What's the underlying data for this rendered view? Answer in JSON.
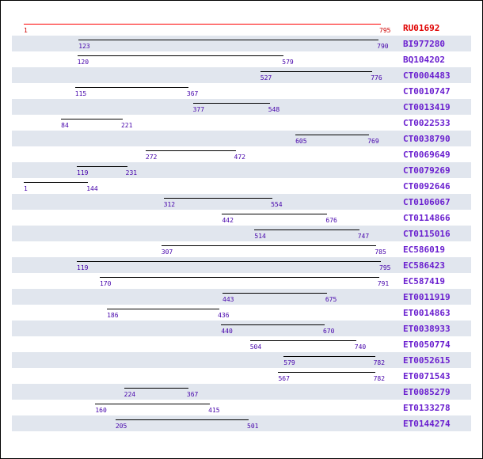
{
  "colors": {
    "reference": "#e00000",
    "line": "#000000",
    "accession": "#6a1fcf",
    "coordinate": "#4400aa",
    "stripe": "#e1e6ee"
  },
  "alignments": [
    {
      "name": "RU01692",
      "start": 1,
      "end": 795,
      "reference": true
    },
    {
      "name": "BI977280",
      "start": 123,
      "end": 790
    },
    {
      "name": "BQ104202",
      "start": 120,
      "end": 579
    },
    {
      "name": "CT0004483",
      "start": 527,
      "end": 776
    },
    {
      "name": "CT0010747",
      "start": 115,
      "end": 367
    },
    {
      "name": "CT0013419",
      "start": 377,
      "end": 548
    },
    {
      "name": "CT0022533",
      "start": 84,
      "end": 221
    },
    {
      "name": "CT0038790",
      "start": 605,
      "end": 769
    },
    {
      "name": "CT0069649",
      "start": 272,
      "end": 472
    },
    {
      "name": "CT0079269",
      "start": 119,
      "end": 231
    },
    {
      "name": "CT0092646",
      "start": 1,
      "end": 144
    },
    {
      "name": "CT0106067",
      "start": 312,
      "end": 554
    },
    {
      "name": "CT0114866",
      "start": 442,
      "end": 676
    },
    {
      "name": "CT0115016",
      "start": 514,
      "end": 747
    },
    {
      "name": "EC586019",
      "start": 307,
      "end": 785
    },
    {
      "name": "EC586423",
      "start": 119,
      "end": 795
    },
    {
      "name": "EC587419",
      "start": 170,
      "end": 791
    },
    {
      "name": "ET0011919",
      "start": 443,
      "end": 675
    },
    {
      "name": "ET0014863",
      "start": 186,
      "end": 436
    },
    {
      "name": "ET0038933",
      "start": 440,
      "end": 670
    },
    {
      "name": "ET0050774",
      "start": 504,
      "end": 740
    },
    {
      "name": "ET0052615",
      "start": 579,
      "end": 782
    },
    {
      "name": "ET0071543",
      "start": 567,
      "end": 782
    },
    {
      "name": "ET0085279",
      "start": 224,
      "end": 367
    },
    {
      "name": "ET0133278",
      "start": 160,
      "end": 415
    },
    {
      "name": "ET0144274",
      "start": 205,
      "end": 501
    }
  ]
}
